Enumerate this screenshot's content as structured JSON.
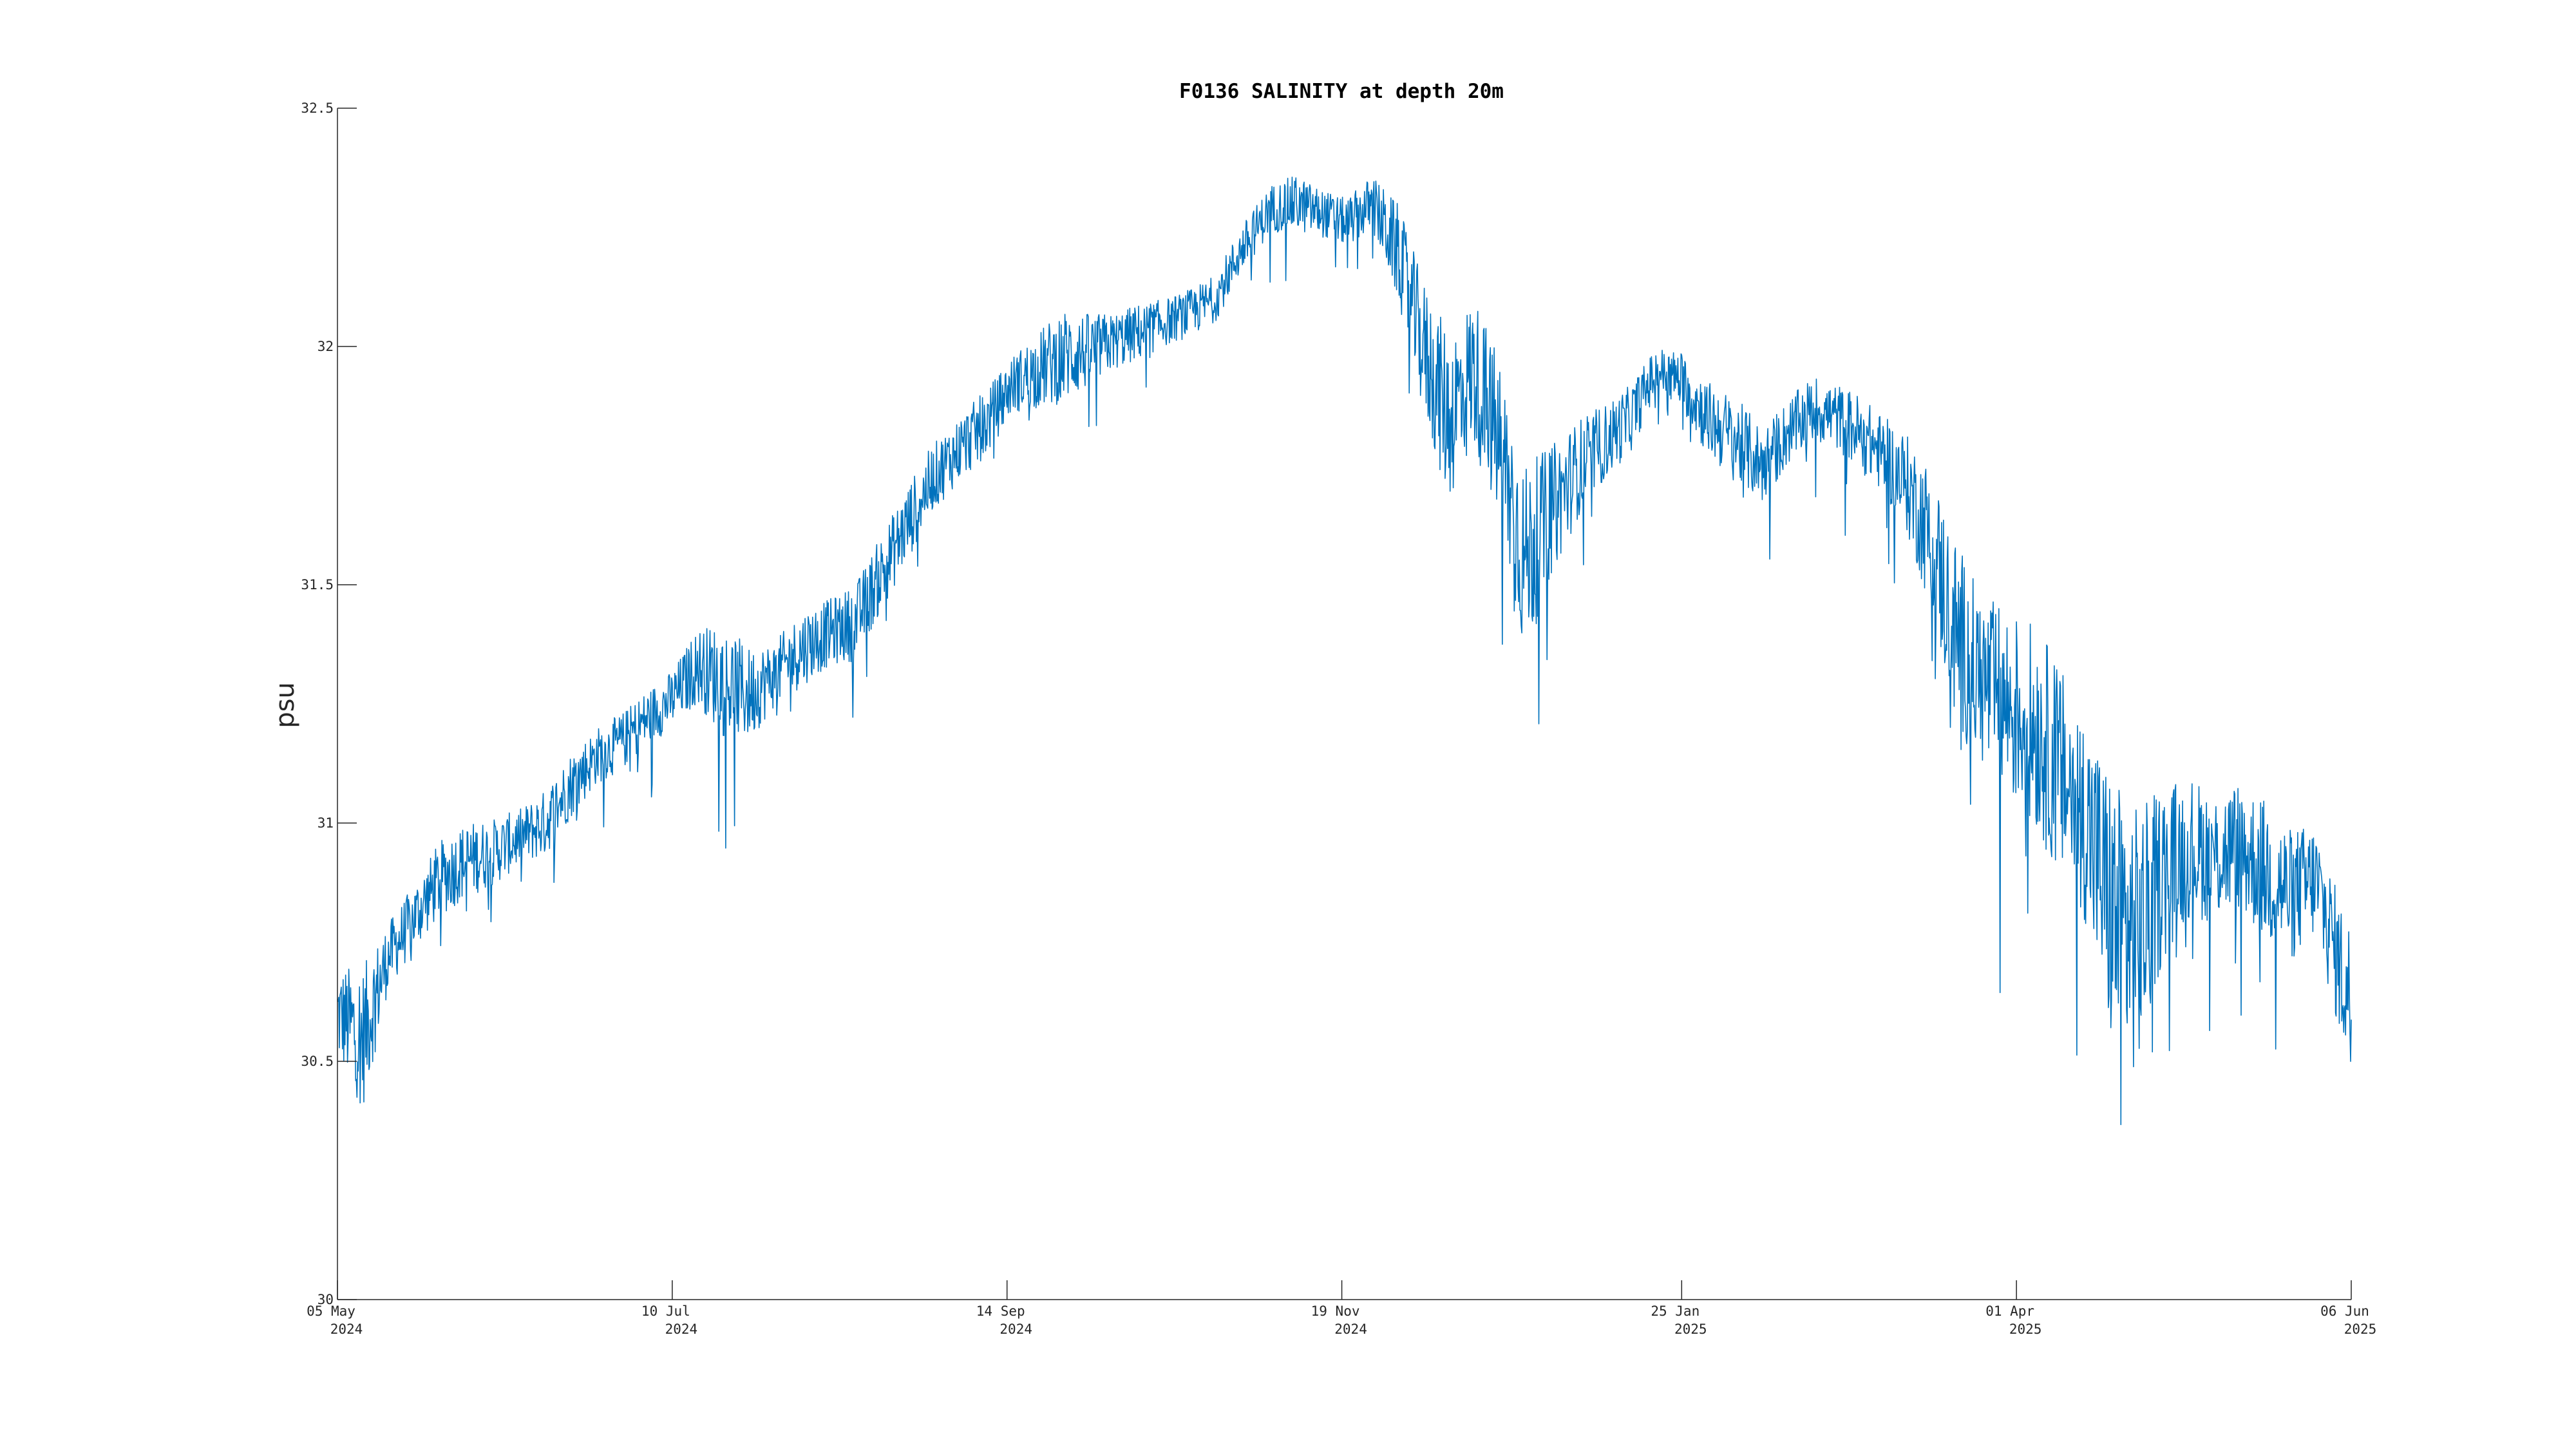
{
  "chart_data": {
    "type": "line",
    "title": "F0136 SALINITY at depth 20m",
    "xlabel": "",
    "ylabel": "psu",
    "ylim": [
      30,
      32.5
    ],
    "xlim": [
      "2024-05-05",
      "2025-06-06"
    ],
    "grid": false,
    "legend": "none",
    "y_ticks": [
      30,
      30.5,
      31,
      31.5,
      32,
      32.5
    ],
    "y_tick_labels": [
      "30",
      "30.5",
      "31",
      "31.5",
      "32",
      "32.5"
    ],
    "x_ticks": [
      {
        "date": "2024-05-05",
        "line1": "05 May",
        "line2": "2024"
      },
      {
        "date": "2024-07-10",
        "line1": "10 Jul",
        "line2": "2024"
      },
      {
        "date": "2024-09-14",
        "line1": "14 Sep",
        "line2": "2024"
      },
      {
        "date": "2024-11-19",
        "line1": "19 Nov",
        "line2": "2024"
      },
      {
        "date": "2025-01-25",
        "line1": "25 Jan",
        "line2": "2025"
      },
      {
        "date": "2025-04-01",
        "line1": "01 Apr",
        "line2": "2025"
      },
      {
        "date": "2025-06-06",
        "line1": "06 Jun",
        "line2": "2025"
      }
    ],
    "series": [
      {
        "color": "#0072BD",
        "x": [
          "2024-05-05",
          "2024-05-10",
          "2024-05-15",
          "2024-05-20",
          "2024-05-25",
          "2024-05-30",
          "2024-06-05",
          "2024-06-10",
          "2024-06-15",
          "2024-06-20",
          "2024-06-25",
          "2024-06-30",
          "2024-07-05",
          "2024-07-10",
          "2024-07-15",
          "2024-07-20",
          "2024-07-25",
          "2024-07-30",
          "2024-08-05",
          "2024-08-10",
          "2024-08-15",
          "2024-08-20",
          "2024-08-25",
          "2024-08-30",
          "2024-09-05",
          "2024-09-10",
          "2024-09-15",
          "2024-09-20",
          "2024-09-25",
          "2024-09-30",
          "2024-10-05",
          "2024-10-10",
          "2024-10-15",
          "2024-10-20",
          "2024-10-25",
          "2024-10-30",
          "2024-11-05",
          "2024-11-10",
          "2024-11-15",
          "2024-11-20",
          "2024-11-25",
          "2024-11-30",
          "2024-12-05",
          "2024-12-10",
          "2024-12-15",
          "2024-12-20",
          "2024-12-25",
          "2024-12-30",
          "2025-01-05",
          "2025-01-10",
          "2025-01-15",
          "2025-01-20",
          "2025-01-25",
          "2025-01-30",
          "2025-02-05",
          "2025-02-10",
          "2025-02-15",
          "2025-02-20",
          "2025-02-25",
          "2025-03-01",
          "2025-03-05",
          "2025-03-10",
          "2025-03-15",
          "2025-03-20",
          "2025-03-25",
          "2025-03-30",
          "2025-04-05",
          "2025-04-10",
          "2025-04-15",
          "2025-04-20",
          "2025-04-25",
          "2025-04-30",
          "2025-05-05",
          "2025-05-10",
          "2025-05-15",
          "2025-05-20",
          "2025-05-25",
          "2025-05-30",
          "2025-06-05"
        ],
        "y": [
          30.6,
          30.55,
          30.72,
          30.8,
          30.88,
          30.92,
          30.94,
          30.97,
          31.0,
          31.08,
          31.14,
          31.17,
          31.22,
          31.26,
          31.33,
          31.3,
          31.27,
          31.31,
          31.37,
          31.4,
          31.42,
          31.52,
          31.62,
          31.72,
          31.79,
          31.84,
          31.92,
          31.95,
          31.98,
          31.99,
          32.01,
          32.03,
          32.05,
          32.07,
          32.1,
          32.2,
          32.29,
          32.3,
          32.28,
          32.26,
          32.3,
          32.2,
          32.0,
          31.85,
          31.95,
          31.8,
          31.55,
          31.65,
          31.75,
          31.8,
          31.85,
          31.95,
          31.93,
          31.85,
          31.8,
          31.75,
          31.82,
          31.87,
          31.85,
          31.82,
          31.78,
          31.72,
          31.6,
          31.4,
          31.3,
          31.25,
          31.2,
          31.1,
          31.0,
          30.8,
          30.75,
          30.9,
          30.95,
          30.93,
          30.95,
          30.9,
          30.85,
          30.88,
          30.65
        ],
        "variability": [
          0.1,
          0.15,
          0.07,
          0.07,
          0.08,
          0.08,
          0.07,
          0.06,
          0.07,
          0.07,
          0.06,
          0.06,
          0.06,
          0.06,
          0.08,
          0.12,
          0.1,
          0.07,
          0.08,
          0.07,
          0.08,
          0.08,
          0.08,
          0.07,
          0.07,
          0.07,
          0.06,
          0.08,
          0.1,
          0.08,
          0.06,
          0.06,
          0.05,
          0.05,
          0.05,
          0.05,
          0.05,
          0.06,
          0.05,
          0.05,
          0.06,
          0.1,
          0.14,
          0.18,
          0.16,
          0.18,
          0.2,
          0.14,
          0.1,
          0.08,
          0.07,
          0.05,
          0.06,
          0.08,
          0.09,
          0.08,
          0.07,
          0.07,
          0.07,
          0.08,
          0.08,
          0.1,
          0.15,
          0.2,
          0.18,
          0.2,
          0.22,
          0.22,
          0.22,
          0.3,
          0.28,
          0.18,
          0.15,
          0.14,
          0.14,
          0.15,
          0.14,
          0.12,
          0.15
        ]
      }
    ]
  }
}
